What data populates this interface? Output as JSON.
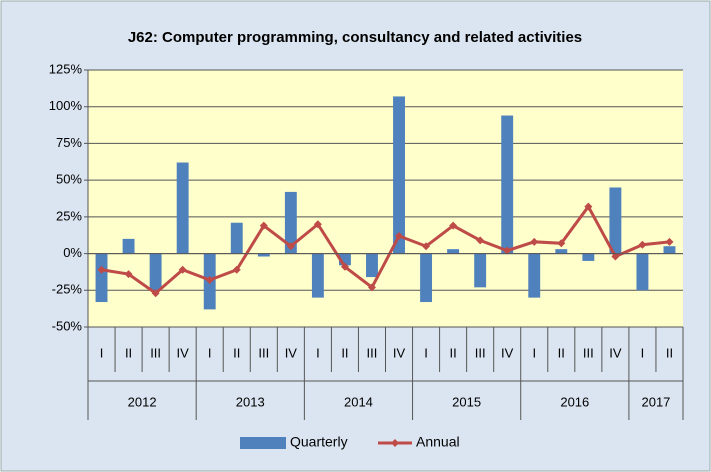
{
  "chart_data": {
    "type": "bar_line",
    "title": "J62: Computer programming, consultancy and related activities",
    "categories": [
      "I",
      "II",
      "III",
      "IV",
      "I",
      "II",
      "III",
      "IV",
      "I",
      "II",
      "III",
      "IV",
      "I",
      "II",
      "III",
      "IV",
      "I",
      "II",
      "III",
      "IV",
      "I",
      "II"
    ],
    "groups": [
      {
        "label": "2012",
        "count": 4
      },
      {
        "label": "2013",
        "count": 4
      },
      {
        "label": "2014",
        "count": 4
      },
      {
        "label": "2015",
        "count": 4
      },
      {
        "label": "2016",
        "count": 4
      },
      {
        "label": "2017",
        "count": 2
      }
    ],
    "series": [
      {
        "name": "Quarterly",
        "type": "bar",
        "color": "#4f81bd",
        "values": [
          -33,
          10,
          -25,
          62,
          -38,
          21,
          -2,
          42,
          -30,
          -8,
          -16,
          107,
          -33,
          3,
          -23,
          94,
          -30,
          3,
          -5,
          45,
          -25,
          5
        ]
      },
      {
        "name": "Annual",
        "type": "line",
        "color": "#be4b48",
        "values": [
          -11,
          -14,
          -27,
          -11,
          -18,
          -11,
          19,
          5,
          20,
          -9,
          -23,
          12,
          5,
          19,
          9,
          2,
          8,
          7,
          32,
          -2,
          6,
          8
        ]
      }
    ],
    "ylim": [
      -50,
      125
    ],
    "yticks": [
      {
        "value": -50,
        "label": "-50%"
      },
      {
        "value": -25,
        "label": "-25%"
      },
      {
        "value": 0,
        "label": "0%"
      },
      {
        "value": 25,
        "label": "25%"
      },
      {
        "value": 50,
        "label": "50%"
      },
      {
        "value": 75,
        "label": "75%"
      },
      {
        "value": 100,
        "label": "100%"
      },
      {
        "value": 125,
        "label": "125%"
      }
    ],
    "grid": true,
    "legend": "bottom"
  }
}
